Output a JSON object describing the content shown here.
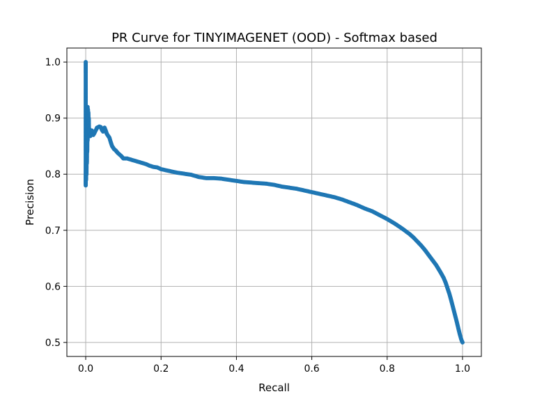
{
  "chart_data": {
    "type": "line",
    "title": "PR Curve for TINYIMAGENET (OOD) - Softmax based",
    "xlabel": "Recall",
    "ylabel": "Precision",
    "xlim": [
      -0.05,
      1.05
    ],
    "ylim": [
      0.475,
      1.025
    ],
    "xticks": [
      0.0,
      0.2,
      0.4,
      0.6,
      0.8,
      1.0
    ],
    "xtick_labels": [
      "0.0",
      "0.2",
      "0.4",
      "0.6",
      "0.8",
      "1.0"
    ],
    "yticks": [
      0.5,
      0.6,
      0.7,
      0.8,
      0.9,
      1.0
    ],
    "ytick_labels": [
      "0.5",
      "0.6",
      "0.7",
      "0.8",
      "0.9",
      "1.0"
    ],
    "grid": true,
    "legend": "none",
    "color": "#1f77b4",
    "marker": "circle",
    "series": [
      {
        "x": [
          0.0,
          0.0,
          0.001,
          0.001,
          0.002,
          0.002,
          0.003,
          0.003,
          0.004,
          0.004,
          0.005,
          0.005,
          0.006,
          0.006,
          0.007,
          0.008,
          0.008,
          0.009,
          0.01,
          0.011,
          0.012,
          0.014,
          0.016,
          0.018,
          0.02,
          0.022,
          0.025,
          0.028,
          0.03,
          0.033,
          0.036,
          0.04,
          0.043,
          0.046,
          0.05,
          0.053,
          0.056,
          0.06,
          0.063,
          0.066,
          0.07,
          0.075,
          0.08,
          0.085,
          0.09,
          0.095,
          0.1,
          0.11,
          0.12,
          0.13,
          0.14,
          0.15,
          0.16,
          0.17,
          0.18,
          0.19,
          0.2,
          0.22,
          0.24,
          0.26,
          0.28,
          0.3,
          0.32,
          0.34,
          0.36,
          0.38,
          0.4,
          0.42,
          0.44,
          0.46,
          0.48,
          0.5,
          0.52,
          0.54,
          0.56,
          0.58,
          0.6,
          0.62,
          0.64,
          0.66,
          0.68,
          0.7,
          0.72,
          0.74,
          0.76,
          0.78,
          0.8,
          0.82,
          0.84,
          0.86,
          0.87,
          0.88,
          0.89,
          0.9,
          0.91,
          0.92,
          0.93,
          0.94,
          0.95,
          0.955,
          0.96,
          0.965,
          0.97,
          0.975,
          0.98,
          0.985,
          0.99,
          0.993,
          0.996,
          0.998,
          1.0
        ],
        "y": [
          1.0,
          0.78,
          0.85,
          0.79,
          0.89,
          0.8,
          0.9,
          0.82,
          0.91,
          0.84,
          0.92,
          0.86,
          0.915,
          0.87,
          0.91,
          0.88,
          0.9,
          0.87,
          0.88,
          0.875,
          0.868,
          0.872,
          0.878,
          0.876,
          0.87,
          0.872,
          0.876,
          0.88,
          0.883,
          0.884,
          0.885,
          0.884,
          0.879,
          0.876,
          0.883,
          0.878,
          0.872,
          0.868,
          0.865,
          0.858,
          0.85,
          0.845,
          0.842,
          0.838,
          0.835,
          0.832,
          0.828,
          0.828,
          0.826,
          0.824,
          0.822,
          0.82,
          0.818,
          0.815,
          0.813,
          0.812,
          0.809,
          0.806,
          0.803,
          0.801,
          0.799,
          0.795,
          0.793,
          0.793,
          0.792,
          0.79,
          0.788,
          0.786,
          0.785,
          0.784,
          0.783,
          0.781,
          0.778,
          0.776,
          0.774,
          0.771,
          0.768,
          0.765,
          0.762,
          0.759,
          0.755,
          0.75,
          0.745,
          0.739,
          0.734,
          0.727,
          0.72,
          0.712,
          0.703,
          0.693,
          0.687,
          0.68,
          0.673,
          0.665,
          0.656,
          0.647,
          0.638,
          0.627,
          0.615,
          0.607,
          0.597,
          0.587,
          0.575,
          0.562,
          0.549,
          0.536,
          0.522,
          0.514,
          0.507,
          0.503,
          0.5
        ]
      }
    ]
  }
}
